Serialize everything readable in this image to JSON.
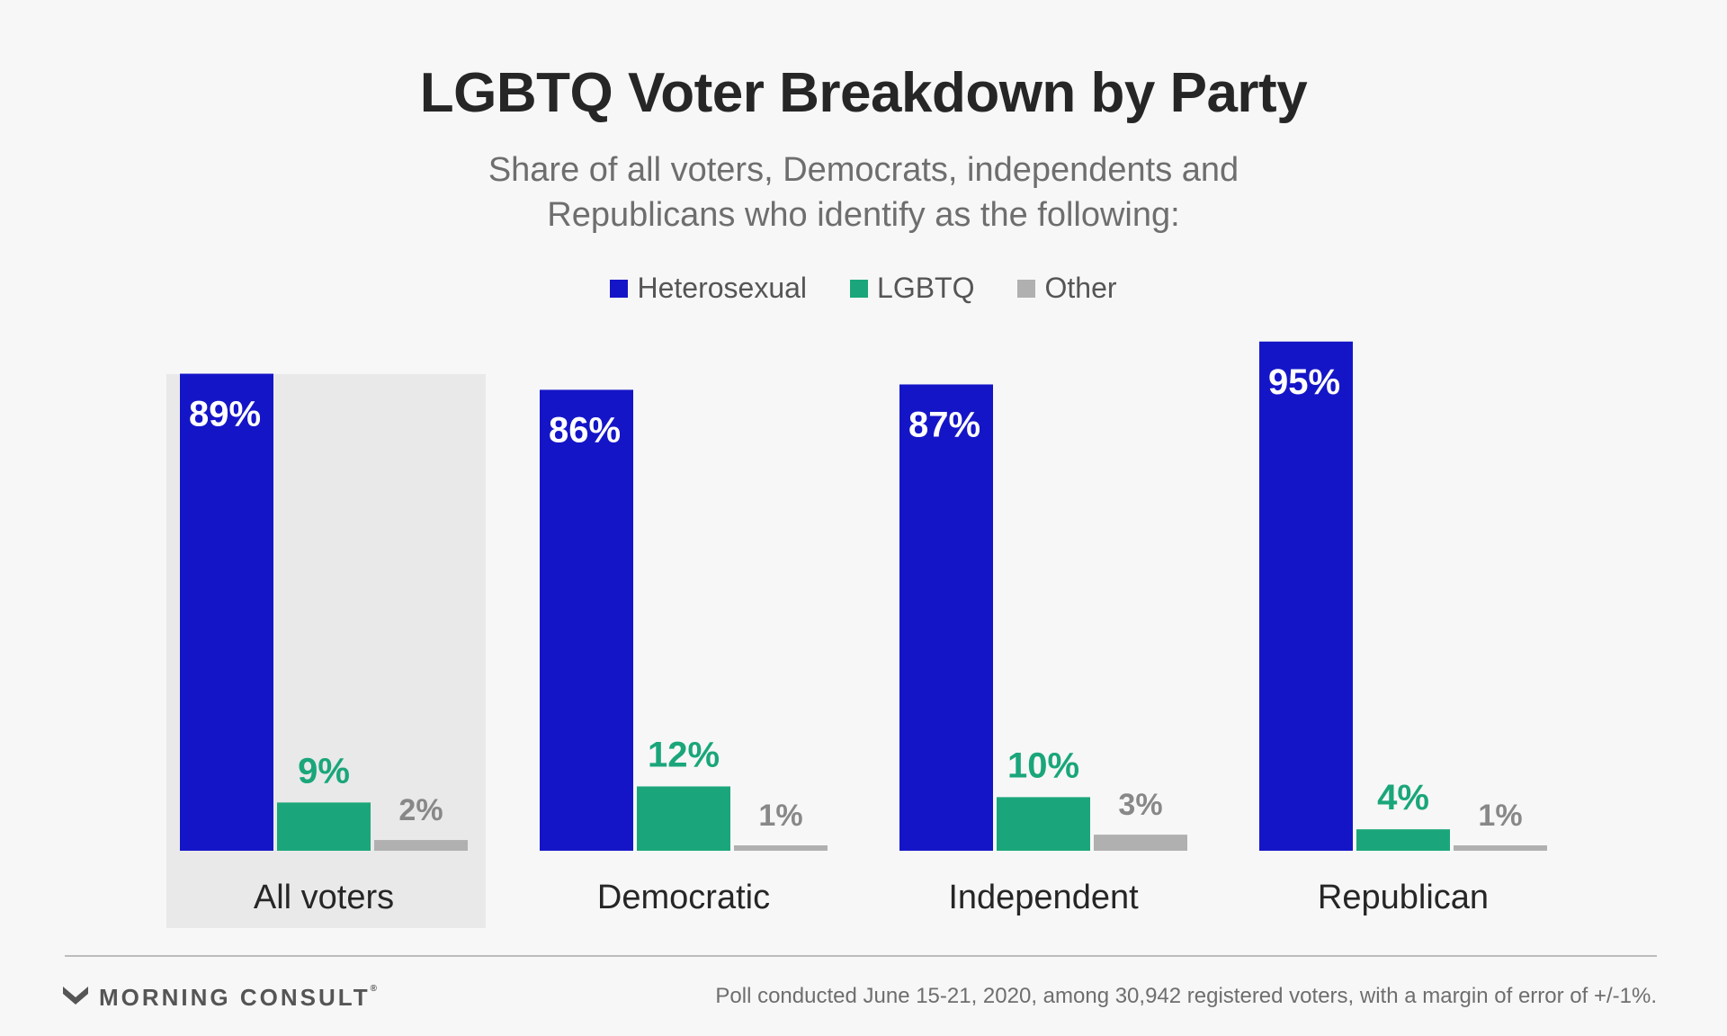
{
  "header": {
    "title": "LGBTQ Voter Breakdown by Party",
    "subtitle_line1": "Share of all voters, Democrats, independents and",
    "subtitle_line2": "Republicans who identify as the following:"
  },
  "legend": {
    "items": [
      {
        "label": "Heterosexual",
        "color": "#1515c8"
      },
      {
        "label": "LGBTQ",
        "color": "#1aa67a"
      },
      {
        "label": "Other",
        "color": "#b0b0b0"
      }
    ]
  },
  "footer": {
    "logo_text": "MORNING CONSULT",
    "logo_mark": "®",
    "note": "Poll conducted June 15-21, 2020, among 30,942 registered voters, with a margin of error of +/-1%."
  },
  "chart_data": {
    "type": "bar",
    "categories": [
      "All voters",
      "Democratic",
      "Independent",
      "Republican"
    ],
    "highlighted_category": "All voters",
    "series": [
      {
        "name": "Heterosexual",
        "values": [
          89,
          86,
          87,
          95
        ],
        "labels": [
          "89%",
          "86%",
          "87%",
          "95%"
        ],
        "color": "#1515c8",
        "label_color": "#ffffff"
      },
      {
        "name": "LGBTQ",
        "values": [
          9,
          12,
          10,
          4
        ],
        "labels": [
          "9%",
          "12%",
          "10%",
          "4%"
        ],
        "color": "#1aa67a",
        "label_color": "#1aa67a"
      },
      {
        "name": "Other",
        "values": [
          2,
          1,
          3,
          1
        ],
        "labels": [
          "2%",
          "1%",
          "3%",
          "1%"
        ],
        "color": "#b0b0b0",
        "label_color": "#888888"
      }
    ],
    "ylim": [
      0,
      100
    ],
    "grid": false,
    "legend_position": "top-center"
  }
}
